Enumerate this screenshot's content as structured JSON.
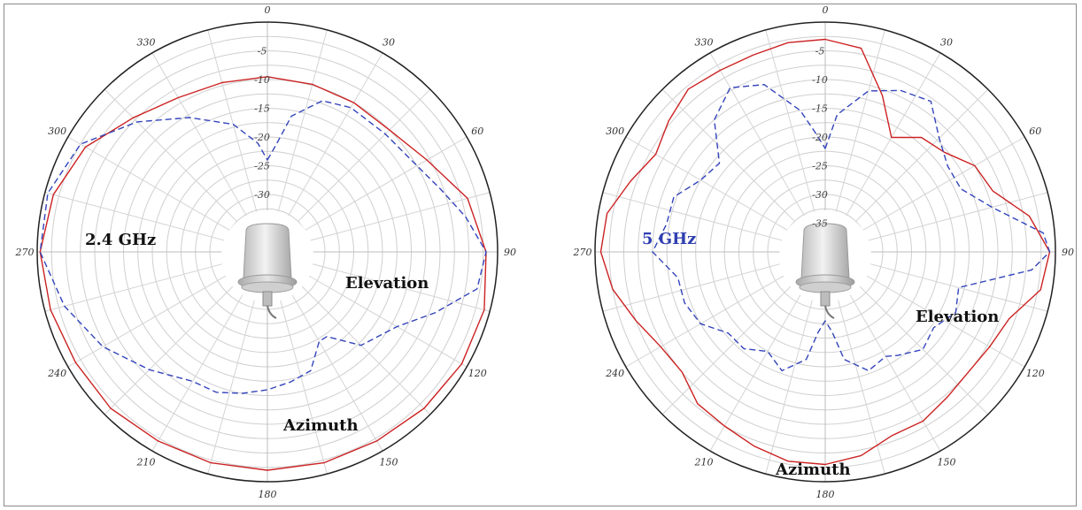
{
  "chart_data": [
    {
      "type": "polar",
      "band_label": "2.4 GHz",
      "band_color": "#111111",
      "azimuth_label": "Azimuth",
      "elevation_label": "Elevation",
      "angle_ticks": [
        "0",
        "30",
        "60",
        "90",
        "120",
        "150",
        "180",
        "210",
        "240",
        "270",
        "300",
        "330"
      ],
      "radial_ticks": [
        "-5",
        "-10",
        "-15",
        "-20",
        "-25",
        "-30"
      ],
      "radial_min": -40,
      "radial_max": 0,
      "series": [
        {
          "style": "solid",
          "color": "#cc2222",
          "angles": [
            0,
            15,
            30,
            45,
            60,
            75,
            90,
            105,
            120,
            135,
            150,
            165,
            180,
            195,
            210,
            225,
            240,
            255,
            270,
            285,
            300,
            315,
            330,
            345
          ],
          "values": [
            -9.5,
            -9.8,
            -10,
            -10,
            -8,
            -4,
            -2,
            -1,
            -1,
            -1.5,
            -2,
            -2,
            -2,
            -2,
            -2,
            -1.5,
            -1.5,
            -1,
            -0.5,
            -1.5,
            -3.5,
            -7,
            -9,
            -9.5
          ]
        },
        {
          "style": "dashed",
          "color": "#3344bb",
          "angles": [
            0,
            5,
            10,
            20,
            30,
            45,
            60,
            70,
            80,
            90,
            100,
            110,
            120,
            135,
            145,
            150,
            160,
            170,
            180,
            190,
            200,
            210,
            225,
            240,
            255,
            270,
            285,
            300,
            315,
            330,
            345,
            355
          ],
          "values": [
            -24,
            -21,
            -16,
            -12,
            -11,
            -11,
            -10,
            -8,
            -5,
            -2,
            -3,
            -9,
            -14,
            -17,
            -22,
            -22,
            -18,
            -17,
            -16,
            -15,
            -14,
            -14,
            -11,
            -7,
            -3.5,
            -0.5,
            -0.5,
            -2.5,
            -8,
            -13,
            -17,
            -21
          ]
        }
      ]
    },
    {
      "type": "polar",
      "band_label": "5 GHz",
      "band_color": "#2f3fb0",
      "azimuth_label": "Azimuth",
      "elevation_label": "Elevation",
      "angle_ticks": [
        "0",
        "30",
        "60",
        "90",
        "120",
        "150",
        "180",
        "210",
        "240",
        "270",
        "300",
        "330"
      ],
      "radial_ticks": [
        "-5",
        "-10",
        "-15",
        "-20",
        "-25",
        "-30",
        "-35"
      ],
      "radial_min": -40,
      "radial_max": 0,
      "series": [
        {
          "style": "solid",
          "color": "#cc2222",
          "angles": [
            0,
            10,
            20,
            30,
            40,
            50,
            60,
            70,
            80,
            90,
            100,
            110,
            120,
            130,
            140,
            150,
            160,
            170,
            180,
            190,
            200,
            210,
            220,
            230,
            240,
            250,
            260,
            270,
            280,
            290,
            300,
            310,
            320,
            330,
            340,
            350
          ],
          "values": [
            -3,
            -4,
            -11,
            -17,
            -14,
            -13,
            -10,
            -9,
            -4,
            -1,
            -2,
            -6,
            -7,
            -7.5,
            -7,
            -6,
            -6,
            -4,
            -3,
            -3,
            -4,
            -5,
            -5.5,
            -7.5,
            -7,
            -5,
            -2.5,
            -1,
            -1.5,
            -4,
            -6,
            -4.5,
            -3,
            -3.5,
            -3.5,
            -3
          ]
        },
        {
          "style": "dashed",
          "color": "#3344bb",
          "angles": [
            0,
            5,
            15,
            25,
            35,
            45,
            55,
            65,
            75,
            85,
            90,
            95,
            105,
            115,
            125,
            135,
            145,
            150,
            160,
            170,
            175,
            180,
            185,
            190,
            200,
            210,
            220,
            230,
            240,
            250,
            260,
            270,
            280,
            290,
            300,
            310,
            320,
            330,
            340,
            350,
            355
          ],
          "values": [
            -22,
            -16,
            -11,
            -9,
            -8,
            -12,
            -14,
            -14,
            -10,
            -2,
            -1,
            -4,
            -16,
            -15,
            -17,
            -16,
            -18,
            -19,
            -18,
            -21,
            -26,
            -28,
            -26,
            -21,
            -18,
            -20,
            -18,
            -18,
            -15,
            -14,
            -14,
            -10,
            -12,
            -12,
            -15,
            -16,
            -10,
            -7,
            -9,
            -15,
            -19
          ]
        }
      ]
    }
  ]
}
